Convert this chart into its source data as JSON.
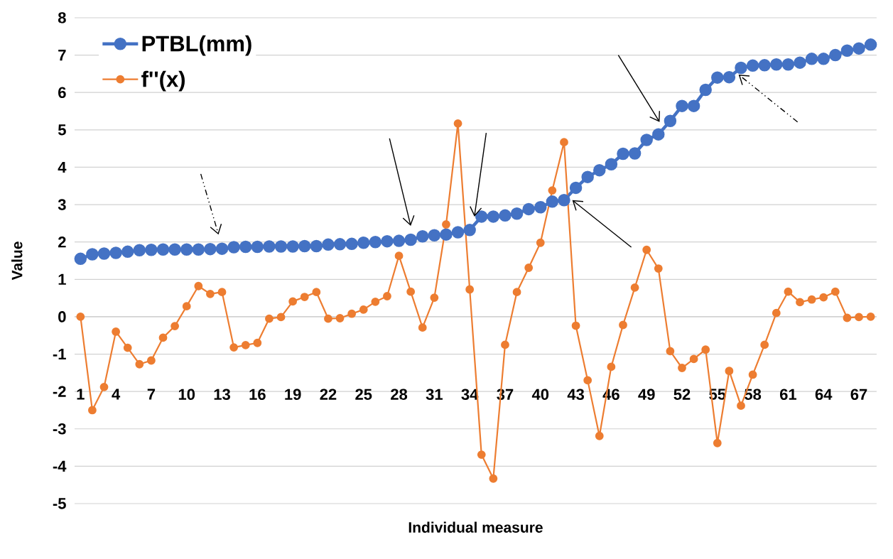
{
  "chart_data": {
    "type": "line",
    "xlabel": "Individual measure",
    "ylabel": "Value",
    "categories": [
      "1",
      null,
      null,
      "4",
      null,
      null,
      "7",
      null,
      null,
      "10",
      null,
      null,
      "13",
      null,
      null,
      "16",
      null,
      null,
      "19",
      null,
      null,
      "22",
      null,
      null,
      "25",
      null,
      null,
      "28",
      null,
      null,
      "31",
      null,
      null,
      "34",
      null,
      null,
      "37",
      null,
      null,
      "40",
      null,
      null,
      "43",
      null,
      null,
      "46",
      null,
      null,
      "49",
      null,
      null,
      "52",
      null,
      null,
      "55",
      null,
      null,
      "58",
      null,
      null,
      "61",
      null,
      null,
      "64",
      null,
      null,
      "67",
      null
    ],
    "series": [
      {
        "name": "PTBL(mm)",
        "color": "#4472c4",
        "values": [
          1.55,
          1.67,
          1.69,
          1.71,
          1.74,
          1.78,
          1.79,
          1.8,
          1.8,
          1.8,
          1.8,
          1.81,
          1.82,
          1.86,
          1.87,
          1.87,
          1.88,
          1.88,
          1.88,
          1.89,
          1.89,
          1.93,
          1.94,
          1.95,
          1.98,
          2.0,
          2.02,
          2.03,
          2.06,
          2.15,
          2.18,
          2.2,
          2.26,
          2.32,
          2.68,
          2.68,
          2.71,
          2.76,
          2.88,
          2.93,
          3.08,
          3.12,
          3.45,
          3.74,
          3.92,
          4.08,
          4.36,
          4.37,
          4.73,
          4.88,
          5.24,
          5.64,
          5.64,
          6.07,
          6.4,
          6.41,
          6.66,
          6.72,
          6.73,
          6.75,
          6.75,
          6.8,
          6.9,
          6.9,
          7.0,
          7.12,
          7.18,
          7.28
        ]
      },
      {
        "name": "f''(x)",
        "color": "#ed7d31",
        "values": [
          0,
          -2.5,
          -1.88,
          -0.4,
          -0.83,
          -1.27,
          -1.17,
          -0.56,
          -0.25,
          0.28,
          0.82,
          0.61,
          0.66,
          -0.82,
          -0.76,
          -0.7,
          -0.05,
          -0.01,
          0.41,
          0.53,
          0.66,
          -0.05,
          -0.04,
          0.08,
          0.19,
          0.4,
          0.55,
          1.63,
          0.67,
          -0.29,
          0.51,
          2.47,
          5.17,
          0.73,
          -3.69,
          -4.33,
          -0.75,
          0.66,
          1.31,
          1.98,
          3.38,
          4.67,
          -0.24,
          -1.7,
          -3.19,
          -1.34,
          -0.22,
          0.78,
          1.79,
          1.29,
          -0.92,
          -1.37,
          -1.13,
          -0.88,
          -3.38,
          -1.45,
          -2.38,
          -1.55,
          -0.75,
          0.1,
          0.67,
          0.39,
          0.46,
          0.52,
          0.67,
          -0.03,
          -0.01,
          0.0
        ]
      }
    ],
    "ylim": [
      -5,
      8
    ],
    "yticks": [
      -5,
      -4,
      -3,
      -2,
      -1,
      0,
      1,
      2,
      3,
      4,
      5,
      6,
      7,
      8
    ],
    "grid": "y",
    "legend": "top left",
    "marker": "circle",
    "line_style": "solid"
  }
}
